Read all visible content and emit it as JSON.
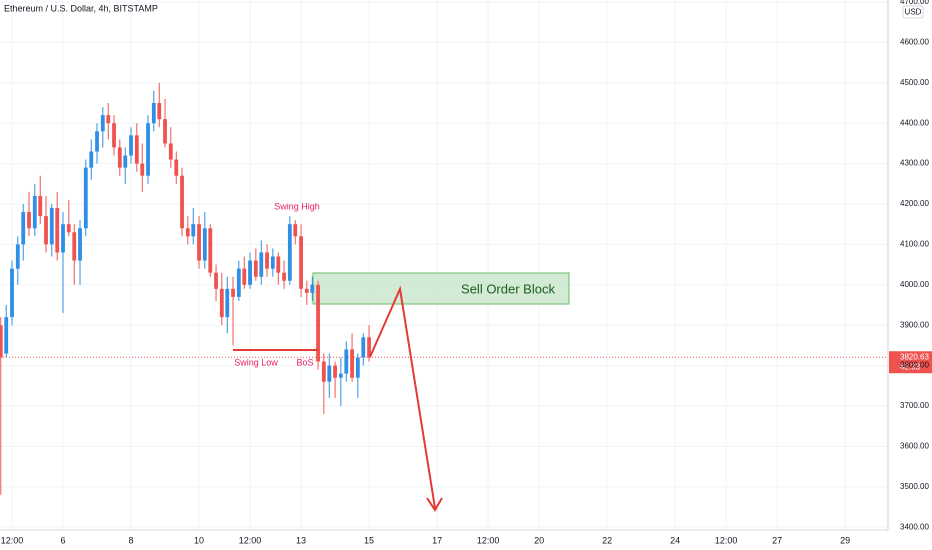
{
  "chart_data": {
    "type": "candlestick",
    "title": "Ethereum / U.S. Dollar, 4h, BITSTAMP",
    "currency": "USD",
    "x": [
      4.17,
      4.33,
      4.5,
      4.67,
      4.83,
      5,
      5.17,
      5.33,
      5.5,
      5.67,
      5.83,
      6,
      6.17,
      6.33,
      6.5,
      6.67,
      6.83,
      7,
      7.17,
      7.33,
      7.5,
      7.67,
      7.83,
      8,
      8.17,
      8.33,
      8.5,
      8.67,
      8.83,
      9,
      9.17,
      9.33,
      9.5,
      9.67,
      9.83,
      10,
      10.17,
      10.33,
      10.5,
      10.67,
      10.83,
      11,
      11.17,
      11.33,
      11.5,
      11.67,
      11.83,
      12,
      12.17,
      12.33,
      12.5,
      12.67,
      12.83,
      13,
      13.17,
      13.33,
      13.5,
      13.67,
      13.83,
      14,
      14.17,
      14.33,
      14.5,
      14.67,
      14.83,
      15
    ],
    "open": [
      3900,
      3830,
      3920,
      4040,
      4100,
      4180,
      4140,
      4220,
      4170,
      4100,
      4190,
      4080,
      4150,
      4130,
      4060,
      4140,
      4290,
      4330,
      4380,
      4420,
      4400,
      4340,
      4290,
      4320,
      4370,
      4300,
      4270,
      4400,
      4450,
      4410,
      4350,
      4310,
      4270,
      4140,
      4120,
      4150,
      4060,
      4140,
      4030,
      3990,
      3920,
      3990,
      3970,
      4040,
      4000,
      4060,
      4020,
      4080,
      4040,
      4070,
      4030,
      4010,
      4150,
      4120,
      3990,
      3980,
      4000,
      3810,
      3760,
      3800,
      3770,
      3780,
      3840,
      3770,
      3820,
      3870
    ],
    "high": [
      3920,
      3950,
      4060,
      4120,
      4200,
      4230,
      4250,
      4270,
      4220,
      4200,
      4230,
      4180,
      4210,
      4150,
      4160,
      4310,
      4360,
      4400,
      4440,
      4450,
      4420,
      4360,
      4340,
      4390,
      4400,
      4350,
      4420,
      4480,
      4500,
      4460,
      4390,
      4330,
      4290,
      4170,
      4190,
      4170,
      4180,
      4150,
      4050,
      4030,
      4020,
      4020,
      4060,
      4070,
      4080,
      4090,
      4110,
      4100,
      4090,
      4080,
      4060,
      4170,
      4160,
      4150,
      4010,
      4020,
      4010,
      3830,
      3830,
      3810,
      3820,
      3860,
      3880,
      3830,
      3880,
      3900
    ],
    "low": [
      3480,
      3820,
      3900,
      4000,
      4060,
      4120,
      4120,
      4150,
      4080,
      4070,
      4060,
      3930,
      4120,
      4000,
      4000,
      4120,
      4260,
      4300,
      4340,
      4360,
      4320,
      4270,
      4250,
      4300,
      4280,
      4230,
      4250,
      4380,
      4390,
      4340,
      4290,
      4250,
      4120,
      4100,
      4100,
      4040,
      4040,
      4020,
      3960,
      3900,
      3880,
      3850,
      3960,
      3990,
      3990,
      4010,
      4000,
      4020,
      4020,
      4000,
      3990,
      4000,
      4100,
      3970,
      3950,
      3960,
      3790,
      3680,
      3720,
      3720,
      3700,
      3760,
      3760,
      3720,
      3800,
      3810
    ],
    "close": [
      3820,
      3920,
      4040,
      4100,
      4180,
      4140,
      4220,
      4170,
      4100,
      4190,
      4080,
      4150,
      4130,
      4060,
      4140,
      4290,
      4330,
      4380,
      4420,
      4400,
      4340,
      4290,
      4320,
      4370,
      4300,
      4270,
      4400,
      4450,
      4410,
      4350,
      4310,
      4270,
      4140,
      4120,
      4150,
      4060,
      4140,
      4030,
      3990,
      3920,
      3990,
      3970,
      4040,
      4000,
      4060,
      4020,
      4080,
      4040,
      4070,
      4030,
      4010,
      4150,
      4120,
      3990,
      3980,
      4000,
      3810,
      3760,
      3800,
      3770,
      3780,
      3840,
      3770,
      3820,
      3870,
      3820
    ],
    "up_color": "#2f8fe6",
    "down_color": "#ef5350",
    "xlim": [
      4.147,
      30.26
    ],
    "ylim": [
      3393,
      4705
    ],
    "xticks": [
      {
        "value": 4.5,
        "label": "12:00"
      },
      6,
      8,
      10,
      {
        "value": 11.5,
        "label": "12:00"
      },
      13,
      15,
      17,
      {
        "value": 18.5,
        "label": "12:00"
      },
      20,
      22,
      24,
      {
        "value": 25.5,
        "label": "12:00"
      },
      27,
      29
    ],
    "yticks": [
      {
        "value": 3400,
        "label": "3400.00"
      },
      {
        "value": 3500,
        "label": "3500.00"
      },
      {
        "value": 3600,
        "label": "3600.00"
      },
      {
        "value": 3700,
        "label": "3700.00"
      },
      {
        "value": 3800,
        "label": "3800.00"
      },
      {
        "value": 3900,
        "label": "3900.00"
      },
      {
        "value": 4000,
        "label": "4000.00"
      },
      {
        "value": 4100,
        "label": "4100.00"
      },
      {
        "value": 4200,
        "label": "4200.00"
      },
      {
        "value": 4300,
        "label": "4300.00"
      },
      {
        "value": 4400,
        "label": "4400.00"
      },
      {
        "value": 4500,
        "label": "4500.00"
      },
      {
        "value": 4600,
        "label": "4600.00"
      },
      {
        "value": 4700,
        "label": "4700.00"
      }
    ],
    "grid": true,
    "last_price": 3820.63,
    "countdown": "42:33",
    "annotations": [
      "Swing High",
      "Swing Low",
      "BoS",
      "Sell Order Block"
    ]
  }
}
